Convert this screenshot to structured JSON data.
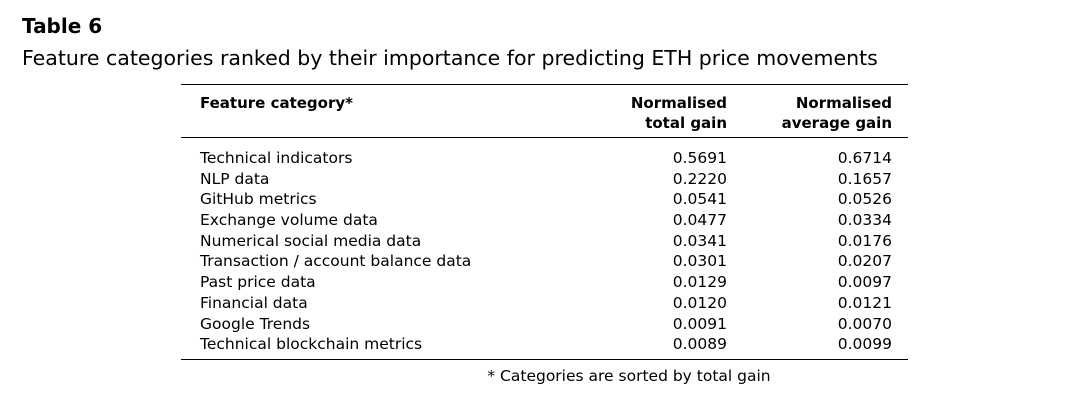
{
  "table_label": "Table 6",
  "caption": "Feature categories ranked by their importance for predicting ETH price movements",
  "table": {
    "headers": {
      "category": "Feature category*",
      "total_gain_line1": "Normalised",
      "total_gain_line2": "total gain",
      "average_gain_line1": "Normalised",
      "average_gain_line2": "average gain"
    },
    "rows": [
      {
        "category": "Technical indicators",
        "total_gain": "0.5691",
        "average_gain": "0.6714"
      },
      {
        "category": "NLP data",
        "total_gain": "0.2220",
        "average_gain": "0.1657"
      },
      {
        "category": "GitHub metrics",
        "total_gain": "0.0541",
        "average_gain": "0.0526"
      },
      {
        "category": "Exchange volume data",
        "total_gain": "0.0477",
        "average_gain": "0.0334"
      },
      {
        "category": "Numerical social media data",
        "total_gain": "0.0341",
        "average_gain": "0.0176"
      },
      {
        "category": "Transaction / account balance data",
        "total_gain": "0.0301",
        "average_gain": "0.0207"
      },
      {
        "category": "Past price data",
        "total_gain": "0.0129",
        "average_gain": "0.0097"
      },
      {
        "category": "Financial data",
        "total_gain": "0.0120",
        "average_gain": "0.0121"
      },
      {
        "category": "Google Trends",
        "total_gain": "0.0091",
        "average_gain": "0.0070"
      },
      {
        "category": "Technical blockchain metrics",
        "total_gain": "0.0089",
        "average_gain": "0.0099"
      }
    ]
  },
  "footnote": "* Categories are sorted by total gain"
}
